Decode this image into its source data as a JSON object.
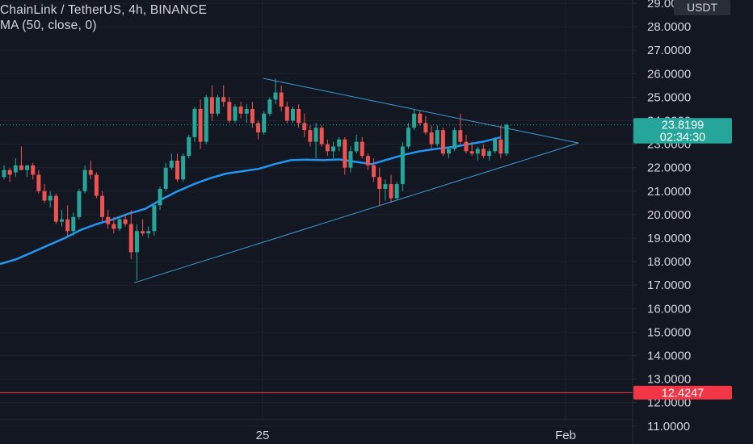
{
  "legend": {
    "symbol_line": "ChainLink / TetherUS, 4h, BINANCE",
    "ma_line": "MA (50, close, 0)"
  },
  "price_axis": {
    "currency": "USDT",
    "ticks": [
      29,
      28,
      27,
      26,
      25,
      24,
      23,
      22,
      21,
      20,
      19,
      18,
      17,
      16,
      15,
      14,
      13,
      12,
      11
    ],
    "tick_labels": [
      "29.0000",
      "28.0000",
      "27.0000",
      "26.0000",
      "25.0000",
      "24.0000",
      "23.0000",
      "22.0000",
      "21.0000",
      "20.0000",
      "19.0000",
      "18.0000",
      "17.0000",
      "16.0000",
      "15.0000",
      "14.0000",
      "13.0000",
      "12.0000",
      "11.0000"
    ]
  },
  "time_axis": {
    "labels": [
      "25",
      "Feb"
    ]
  },
  "badges": {
    "last_price": "23.8199",
    "countdown": "02:34:30",
    "hline_price": "12.4247"
  },
  "colors": {
    "background": "#131722",
    "up": "#26a69a",
    "down": "#ef5350",
    "ma": "#2196f3",
    "trendline": "#3a9bd8",
    "hline": "#f23645",
    "grid": "#1e222d"
  },
  "chart_data": {
    "type": "candlestick",
    "title": "ChainLink / TetherUS, 4h, BINANCE",
    "indicator": "MA (50, close, 0)",
    "ylim": [
      11,
      29
    ],
    "x_ticks": [
      "25",
      "Feb"
    ],
    "last_price": 23.8199,
    "horizontal_line": 12.4247,
    "candles": [
      [
        21.6,
        22.1,
        21.5,
        21.9
      ],
      [
        21.9,
        22.0,
        21.4,
        21.7
      ],
      [
        21.8,
        22.4,
        21.6,
        22.1
      ],
      [
        22.1,
        22.9,
        22.0,
        21.9
      ],
      [
        21.9,
        22.1,
        21.6,
        22.1
      ],
      [
        22.1,
        22.2,
        21.5,
        21.7
      ],
      [
        21.7,
        21.9,
        20.9,
        21.0
      ],
      [
        21.0,
        21.3,
        20.5,
        20.6
      ],
      [
        20.6,
        21.0,
        20.3,
        20.8
      ],
      [
        20.8,
        20.9,
        19.6,
        19.7
      ],
      [
        19.7,
        20.2,
        19.5,
        19.8
      ],
      [
        19.8,
        20.4,
        19.1,
        19.3
      ],
      [
        19.3,
        20.1,
        19.1,
        19.9
      ],
      [
        19.9,
        21.1,
        19.8,
        21.0
      ],
      [
        21.0,
        22.1,
        20.9,
        21.9
      ],
      [
        21.9,
        22.3,
        21.5,
        21.7
      ],
      [
        21.7,
        21.8,
        20.7,
        20.8
      ],
      [
        20.8,
        21.0,
        19.7,
        19.9
      ],
      [
        19.9,
        20.2,
        19.4,
        19.6
      ],
      [
        19.6,
        19.9,
        19.2,
        19.4
      ],
      [
        19.4,
        19.9,
        19.3,
        19.8
      ],
      [
        19.8,
        20.0,
        19.5,
        19.6
      ],
      [
        19.6,
        20.2,
        18.1,
        18.4
      ],
      [
        18.4,
        19.6,
        17.2,
        19.3
      ],
      [
        19.3,
        19.8,
        19.1,
        19.2
      ],
      [
        19.2,
        19.5,
        19.0,
        19.3
      ],
      [
        19.3,
        20.5,
        19.1,
        20.4
      ],
      [
        20.4,
        21.2,
        20.2,
        21.1
      ],
      [
        21.1,
        22.2,
        21.0,
        22.0
      ],
      [
        22.0,
        22.6,
        21.9,
        22.3
      ],
      [
        22.3,
        22.6,
        21.4,
        21.5
      ],
      [
        21.5,
        22.6,
        21.4,
        22.5
      ],
      [
        22.5,
        23.4,
        22.4,
        23.3
      ],
      [
        23.3,
        24.6,
        23.1,
        24.5
      ],
      [
        24.5,
        24.9,
        22.8,
        23.1
      ],
      [
        23.1,
        25.1,
        23.0,
        25.0
      ],
      [
        25.0,
        25.5,
        24.0,
        24.3
      ],
      [
        24.3,
        25.1,
        24.2,
        25.0
      ],
      [
        25.0,
        25.5,
        24.6,
        24.8
      ],
      [
        24.8,
        25.0,
        23.9,
        24.0
      ],
      [
        24.0,
        24.7,
        23.9,
        24.6
      ],
      [
        24.6,
        24.8,
        24.1,
        24.3
      ],
      [
        24.3,
        24.7,
        23.9,
        24.5
      ],
      [
        24.5,
        24.8,
        23.7,
        23.9
      ],
      [
        23.9,
        24.0,
        23.2,
        23.5
      ],
      [
        23.5,
        24.4,
        23.4,
        24.3
      ],
      [
        24.3,
        25.0,
        24.2,
        24.9
      ],
      [
        24.9,
        25.8,
        24.7,
        25.2
      ],
      [
        25.2,
        25.5,
        24.4,
        24.6
      ],
      [
        24.6,
        24.8,
        23.9,
        24.0
      ],
      [
        24.0,
        24.6,
        23.9,
        24.5
      ],
      [
        24.5,
        24.7,
        23.7,
        23.9
      ],
      [
        23.9,
        24.3,
        23.3,
        23.6
      ],
      [
        23.6,
        23.8,
        22.9,
        23.1
      ],
      [
        23.1,
        23.9,
        22.4,
        23.7
      ],
      [
        23.7,
        23.8,
        22.9,
        23.0
      ],
      [
        23.0,
        23.2,
        22.5,
        22.7
      ],
      [
        22.7,
        23.1,
        22.4,
        22.9
      ],
      [
        22.9,
        23.3,
        22.7,
        23.2
      ],
      [
        23.2,
        23.3,
        21.7,
        22.0
      ],
      [
        22.0,
        22.9,
        21.8,
        22.7
      ],
      [
        22.7,
        23.4,
        22.6,
        23.1
      ],
      [
        23.1,
        23.3,
        22.4,
        22.5
      ],
      [
        22.5,
        22.6,
        21.9,
        22.1
      ],
      [
        22.1,
        22.4,
        21.4,
        21.6
      ],
      [
        21.6,
        22.0,
        20.4,
        21.1
      ],
      [
        21.1,
        21.5,
        20.6,
        21.3
      ],
      [
        21.3,
        21.7,
        20.5,
        20.7
      ],
      [
        20.7,
        21.4,
        20.6,
        21.3
      ],
      [
        21.3,
        23.1,
        21.0,
        22.9
      ],
      [
        22.9,
        23.9,
        22.8,
        23.7
      ],
      [
        23.7,
        24.5,
        23.6,
        24.3
      ],
      [
        24.3,
        24.4,
        23.8,
        23.9
      ],
      [
        23.9,
        24.2,
        23.4,
        23.5
      ],
      [
        23.5,
        23.8,
        22.8,
        23.0
      ],
      [
        23.0,
        23.8,
        22.9,
        23.6
      ],
      [
        23.6,
        23.7,
        22.5,
        22.6
      ],
      [
        22.6,
        22.9,
        22.4,
        22.8
      ],
      [
        22.8,
        23.7,
        22.7,
        23.6
      ],
      [
        23.6,
        24.3,
        23.0,
        23.1
      ],
      [
        23.1,
        23.4,
        22.6,
        22.7
      ],
      [
        22.7,
        23.1,
        22.5,
        22.6
      ],
      [
        22.6,
        22.9,
        22.3,
        22.8
      ],
      [
        22.8,
        23.0,
        22.4,
        22.5
      ],
      [
        22.5,
        22.8,
        22.3,
        22.7
      ],
      [
        22.7,
        23.3,
        22.6,
        23.2
      ],
      [
        23.2,
        23.8,
        22.4,
        22.6
      ],
      [
        22.6,
        23.9,
        22.5,
        23.82
      ]
    ],
    "ma50": [
      [
        0,
        17.9
      ],
      [
        20,
        18.1
      ],
      [
        40,
        18.4
      ],
      [
        60,
        18.7
      ],
      [
        80,
        19.0
      ],
      [
        100,
        19.35
      ],
      [
        120,
        19.6
      ],
      [
        140,
        19.8
      ],
      [
        160,
        20.05
      ],
      [
        180,
        20.25
      ],
      [
        200,
        20.65
      ],
      [
        220,
        21.0
      ],
      [
        240,
        21.3
      ],
      [
        260,
        21.55
      ],
      [
        280,
        21.75
      ],
      [
        300,
        21.85
      ],
      [
        320,
        21.95
      ],
      [
        340,
        22.15
      ],
      [
        360,
        22.32
      ],
      [
        380,
        22.34
      ],
      [
        400,
        22.32
      ],
      [
        420,
        22.35
      ],
      [
        440,
        22.25
      ],
      [
        460,
        22.15
      ],
      [
        480,
        22.35
      ],
      [
        500,
        22.55
      ],
      [
        520,
        22.7
      ],
      [
        540,
        22.8
      ],
      [
        560,
        22.88
      ],
      [
        580,
        23.0
      ],
      [
        600,
        23.12
      ],
      [
        620,
        23.3
      ]
    ],
    "trendlines": [
      {
        "from": [
          166,
          17.1
        ],
        "to": [
          716,
          23.05
        ]
      },
      {
        "from": [
          326,
          25.8
        ],
        "to": [
          716,
          23.05
        ]
      }
    ]
  }
}
